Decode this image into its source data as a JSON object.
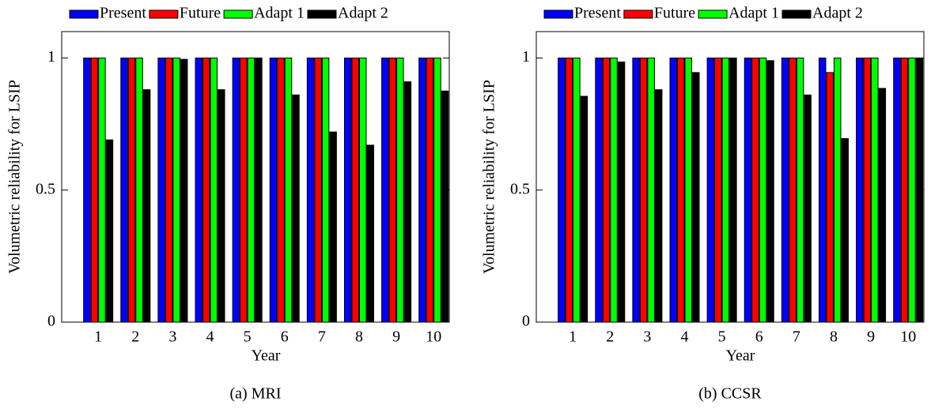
{
  "chart_data": [
    {
      "type": "bar",
      "caption": "(a) MRI",
      "x_label": "Year",
      "y_label": "Volumetric reliability for LSIP",
      "categories": [
        "1",
        "2",
        "3",
        "4",
        "5",
        "6",
        "7",
        "8",
        "9",
        "10"
      ],
      "series": [
        {
          "name": "Present",
          "color": "#0000ff",
          "values": [
            1,
            1,
            1,
            1,
            1,
            1,
            1,
            1,
            1,
            1
          ]
        },
        {
          "name": "Future",
          "color": "#ff0000",
          "values": [
            1,
            1,
            1,
            1,
            1,
            1,
            1,
            1,
            1,
            1
          ]
        },
        {
          "name": "Adapt 1",
          "color": "#00ff00",
          "values": [
            1,
            1,
            1,
            1,
            1,
            1,
            1,
            1,
            1,
            1
          ]
        },
        {
          "name": "Adapt 2",
          "color": "#000000",
          "values": [
            0.69,
            0.88,
            0.995,
            0.88,
            1,
            0.86,
            0.72,
            0.67,
            0.91,
            0.875
          ]
        }
      ],
      "ylim": [
        0,
        1.1
      ],
      "yticks": [
        0,
        0.5,
        1
      ],
      "grid": false,
      "legend": "top"
    },
    {
      "type": "bar",
      "caption": "(b) CCSR",
      "x_label": "Year",
      "y_label": "Volumetric reliability for LSIP",
      "categories": [
        "1",
        "2",
        "3",
        "4",
        "5",
        "6",
        "7",
        "8",
        "9",
        "10"
      ],
      "series": [
        {
          "name": "Present",
          "color": "#0000ff",
          "values": [
            1,
            1,
            1,
            1,
            1,
            1,
            1,
            1,
            1,
            1
          ]
        },
        {
          "name": "Future",
          "color": "#ff0000",
          "values": [
            1,
            1,
            1,
            1,
            1,
            1,
            1,
            0.945,
            1,
            1
          ]
        },
        {
          "name": "Adapt 1",
          "color": "#00ff00",
          "values": [
            1,
            1,
            1,
            1,
            1,
            1,
            1,
            1,
            1,
            1
          ]
        },
        {
          "name": "Adapt 2",
          "color": "#000000",
          "values": [
            0.855,
            0.985,
            0.88,
            0.945,
            1,
            0.99,
            0.86,
            0.695,
            0.885,
            1
          ]
        }
      ],
      "ylim": [
        0,
        1.1
      ],
      "yticks": [
        0,
        0.5,
        1
      ],
      "grid": false,
      "legend": "top"
    }
  ]
}
